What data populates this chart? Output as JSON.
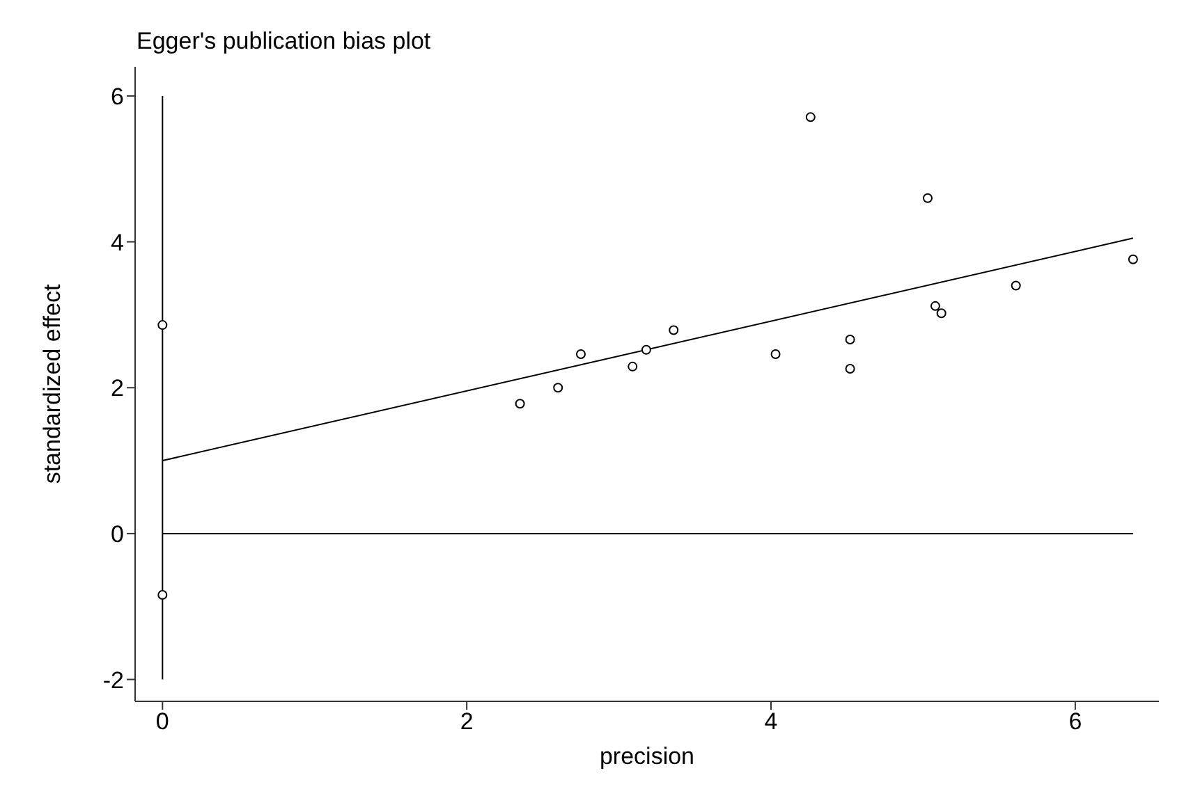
{
  "chart_data": {
    "type": "scatter",
    "title": "Egger's publication bias plot",
    "xlabel": "precision",
    "ylabel": "standardized effect",
    "xlim": [
      -0.18,
      6.55
    ],
    "ylim": [
      -2.3,
      6.4
    ],
    "xticks": [
      0,
      2,
      4,
      6
    ],
    "yticks": [
      -2,
      0,
      2,
      4,
      6
    ],
    "grid": false,
    "marker": "circle",
    "series": [
      {
        "color": "#000000",
        "x": [
          0,
          0,
          2.35,
          2.6,
          2.75,
          3.09,
          3.18,
          3.36,
          4.26,
          4.03,
          4.52,
          4.52,
          5.03,
          5.08,
          5.12,
          5.61,
          6.38
        ],
        "values": [
          2.86,
          -0.84,
          1.78,
          2.0,
          2.46,
          2.29,
          2.52,
          2.79,
          5.71,
          2.46,
          2.66,
          2.26,
          4.6,
          3.12,
          3.02,
          3.4,
          3.76
        ]
      },
      {
        "type": "line",
        "color": "#000000",
        "marker": "none",
        "x": [
          0,
          6.38
        ],
        "values": [
          1.0,
          4.05
        ]
      },
      {
        "type": "line",
        "color": "#000000",
        "marker": "none",
        "x": [
          0,
          0
        ],
        "values": [
          -2,
          6
        ]
      },
      {
        "type": "line",
        "color": "#000000",
        "marker": "none",
        "x": [
          0,
          6.38
        ],
        "values": [
          0,
          0
        ]
      }
    ]
  }
}
